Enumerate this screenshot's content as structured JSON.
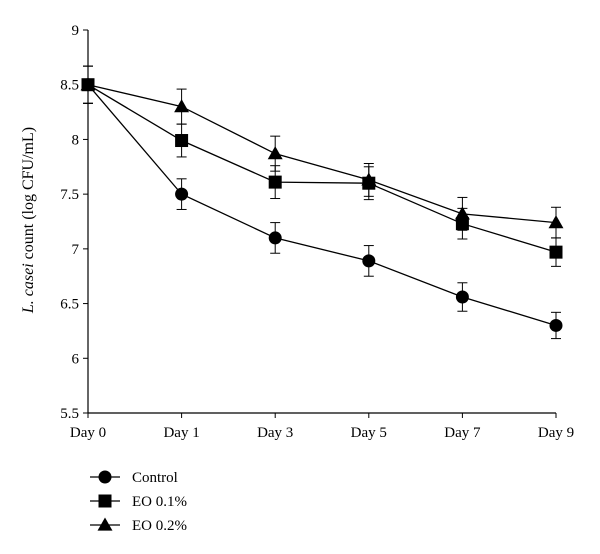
{
  "chart_data": {
    "type": "line",
    "ylabel_italic": "L. casei",
    "ylabel_rest": " count (log CFU/mL)",
    "ylim": [
      5.5,
      9
    ],
    "yticks": [
      "5.5",
      "6",
      "6.5",
      "7",
      "7.5",
      "8",
      "8.5",
      "9"
    ],
    "categories": [
      "Day 0",
      "Day 1",
      "Day 3",
      "Day 5",
      "Day 7",
      "Day 9"
    ],
    "grid": false,
    "legend_position": "bottom-left",
    "series": [
      {
        "name": "Control",
        "marker": "circle",
        "values": [
          8.5,
          7.5,
          7.1,
          6.89,
          6.56,
          6.3
        ],
        "errors": [
          0.17,
          0.14,
          0.14,
          0.14,
          0.13,
          0.12
        ]
      },
      {
        "name": "EO 0.1%",
        "marker": "square",
        "values": [
          8.5,
          7.99,
          7.61,
          7.6,
          7.23,
          6.97
        ],
        "errors": [
          0.17,
          0.15,
          0.15,
          0.15,
          0.14,
          0.13
        ]
      },
      {
        "name": "EO 0.2%",
        "marker": "triangle",
        "values": [
          8.5,
          8.3,
          7.87,
          7.63,
          7.32,
          7.24
        ],
        "errors": [
          0.17,
          0.16,
          0.16,
          0.15,
          0.15,
          0.14
        ]
      }
    ]
  }
}
